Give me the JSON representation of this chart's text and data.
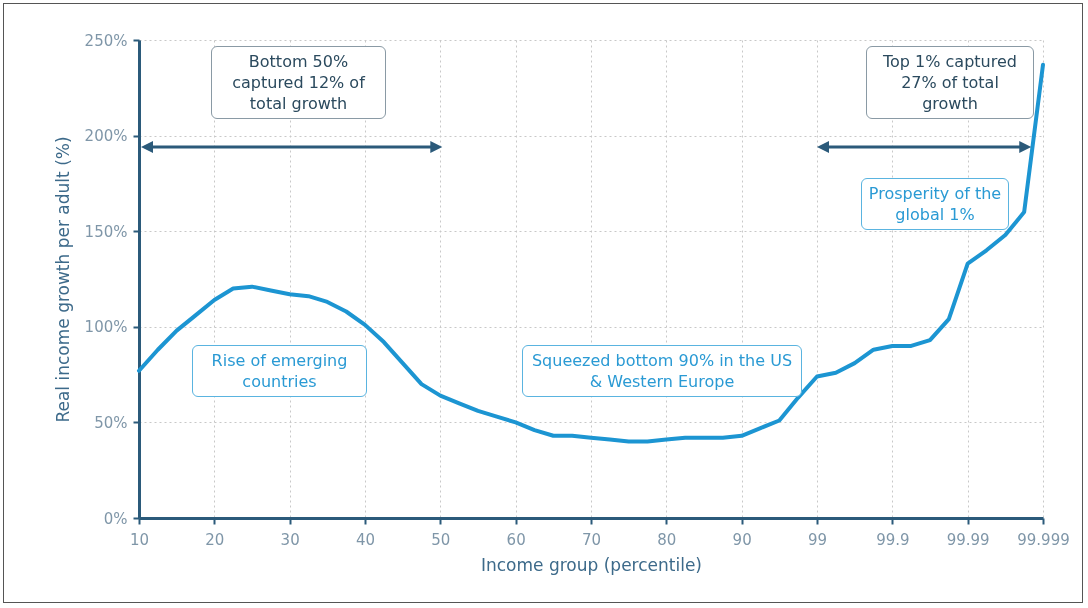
{
  "chart_data": {
    "type": "line",
    "xlabel": "Income group (percentile)",
    "ylabel": "Real income growth per adult (%)",
    "categories": [
      "10",
      null,
      null,
      null,
      "20",
      null,
      null,
      null,
      "30",
      null,
      null,
      null,
      "40",
      null,
      null,
      null,
      "50",
      null,
      null,
      null,
      "60",
      null,
      null,
      null,
      "70",
      null,
      null,
      null,
      "80",
      null,
      null,
      null,
      "90",
      null,
      null,
      null,
      "99",
      null,
      null,
      null,
      "99.9",
      null,
      null,
      null,
      "99.99",
      null,
      null,
      null,
      "99.999"
    ],
    "ylim": [
      0,
      250
    ],
    "yticks": [
      {
        "value": 0,
        "label": "0%"
      },
      {
        "value": 50,
        "label": "50%"
      },
      {
        "value": 100,
        "label": "100%"
      },
      {
        "value": 150,
        "label": "150%"
      },
      {
        "value": 200,
        "label": "200%"
      },
      {
        "value": 250,
        "label": "250%"
      }
    ],
    "grid": true,
    "marker": "none",
    "line_style": "solid",
    "series": [
      {
        "color": "#1c95d2",
        "values": [
          77,
          88,
          98,
          106,
          114,
          120,
          121,
          119,
          117,
          116,
          113,
          108,
          101,
          92,
          81,
          70,
          64,
          60,
          56,
          53,
          50,
          46,
          43,
          43,
          42,
          41,
          40,
          40,
          41,
          42,
          42,
          42,
          43,
          47,
          51,
          63,
          74,
          76,
          81,
          88,
          90,
          90,
          93,
          104,
          133,
          140,
          148,
          160,
          237
        ]
      }
    ],
    "annotations": [
      "Bottom 50% captured 12% of total growth",
      "Top 1% captured 27% of total growth",
      "Rise of emerging countries",
      "Squeezed bottom 90% in the US & Western Europe",
      "Prosperity of the global 1%"
    ]
  }
}
